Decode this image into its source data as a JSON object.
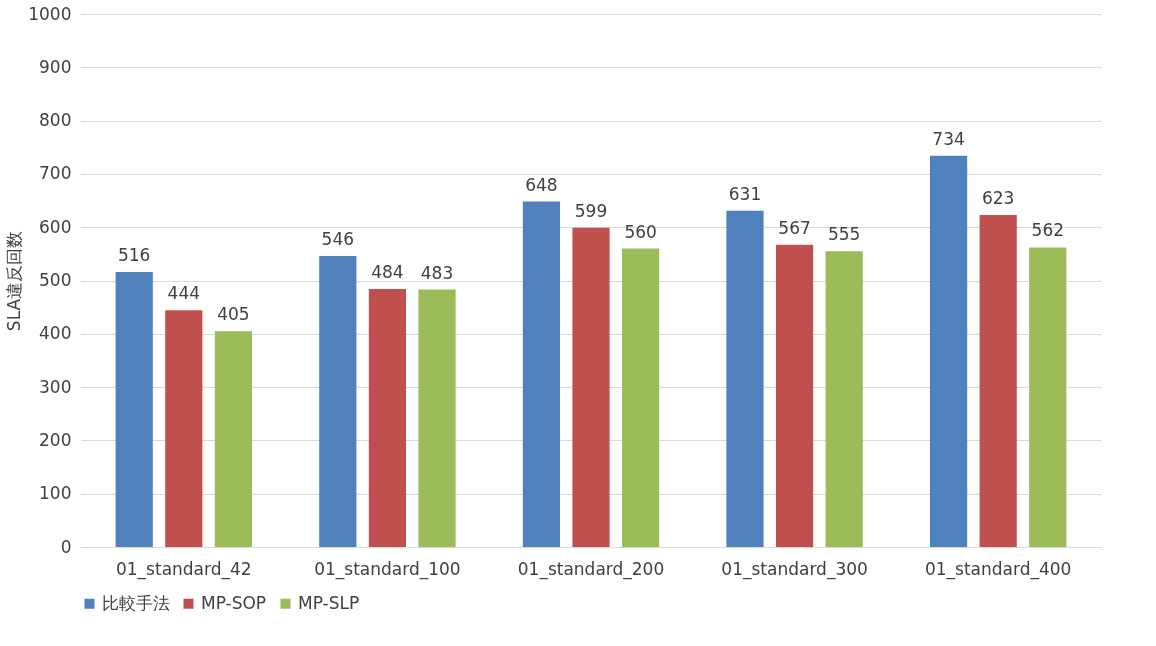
{
  "chart_data": {
    "type": "bar",
    "ylabel": "SLA違反回数",
    "categories": [
      "01_standard_42",
      "01_standard_100",
      "01_standard_200",
      "01_standard_300",
      "01_standard_400"
    ],
    "series": [
      {
        "name": "比較手法",
        "color": "#4f81bd",
        "values": [
          516,
          546,
          648,
          631,
          734
        ]
      },
      {
        "name": "MP-SOP",
        "color": "#c0504d",
        "values": [
          444,
          484,
          599,
          567,
          623
        ]
      },
      {
        "name": "MP-SLP",
        "color": "#9bbb59",
        "values": [
          405,
          483,
          560,
          555,
          562
        ]
      }
    ],
    "ylim": [
      0,
      1000
    ],
    "yticks": [
      0,
      100,
      200,
      300,
      400,
      500,
      600,
      700,
      800,
      900,
      1000
    ],
    "grid": "y",
    "legend": "bottom",
    "data_labels": true
  }
}
